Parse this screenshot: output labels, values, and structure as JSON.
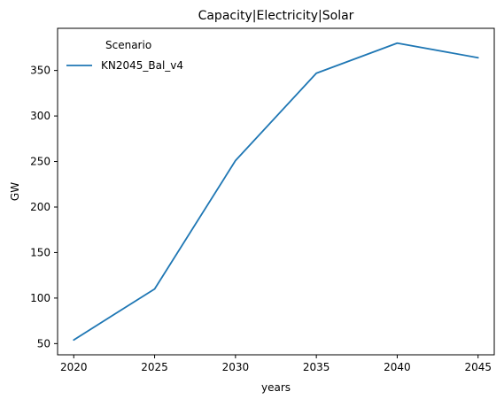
{
  "chart_data": {
    "type": "line",
    "title": "Capacity|Electricity|Solar",
    "xlabel": "years",
    "ylabel": "GW",
    "x": [
      2020,
      2025,
      2030,
      2035,
      2040,
      2045
    ],
    "series": [
      {
        "name": "KN2045_Bal_v4",
        "values": [
          54,
          110,
          251,
          347,
          380,
          364
        ],
        "color": "#1f77b4"
      }
    ],
    "xticks": [
      2020,
      2025,
      2030,
      2035,
      2040,
      2045
    ],
    "yticks": [
      50,
      100,
      150,
      200,
      250,
      300,
      350
    ],
    "xlim": [
      2019,
      2046
    ],
    "ylim": [
      37.7,
      396.3
    ],
    "grid": false,
    "legend": {
      "title": "Scenario",
      "placement": "top-left"
    }
  }
}
